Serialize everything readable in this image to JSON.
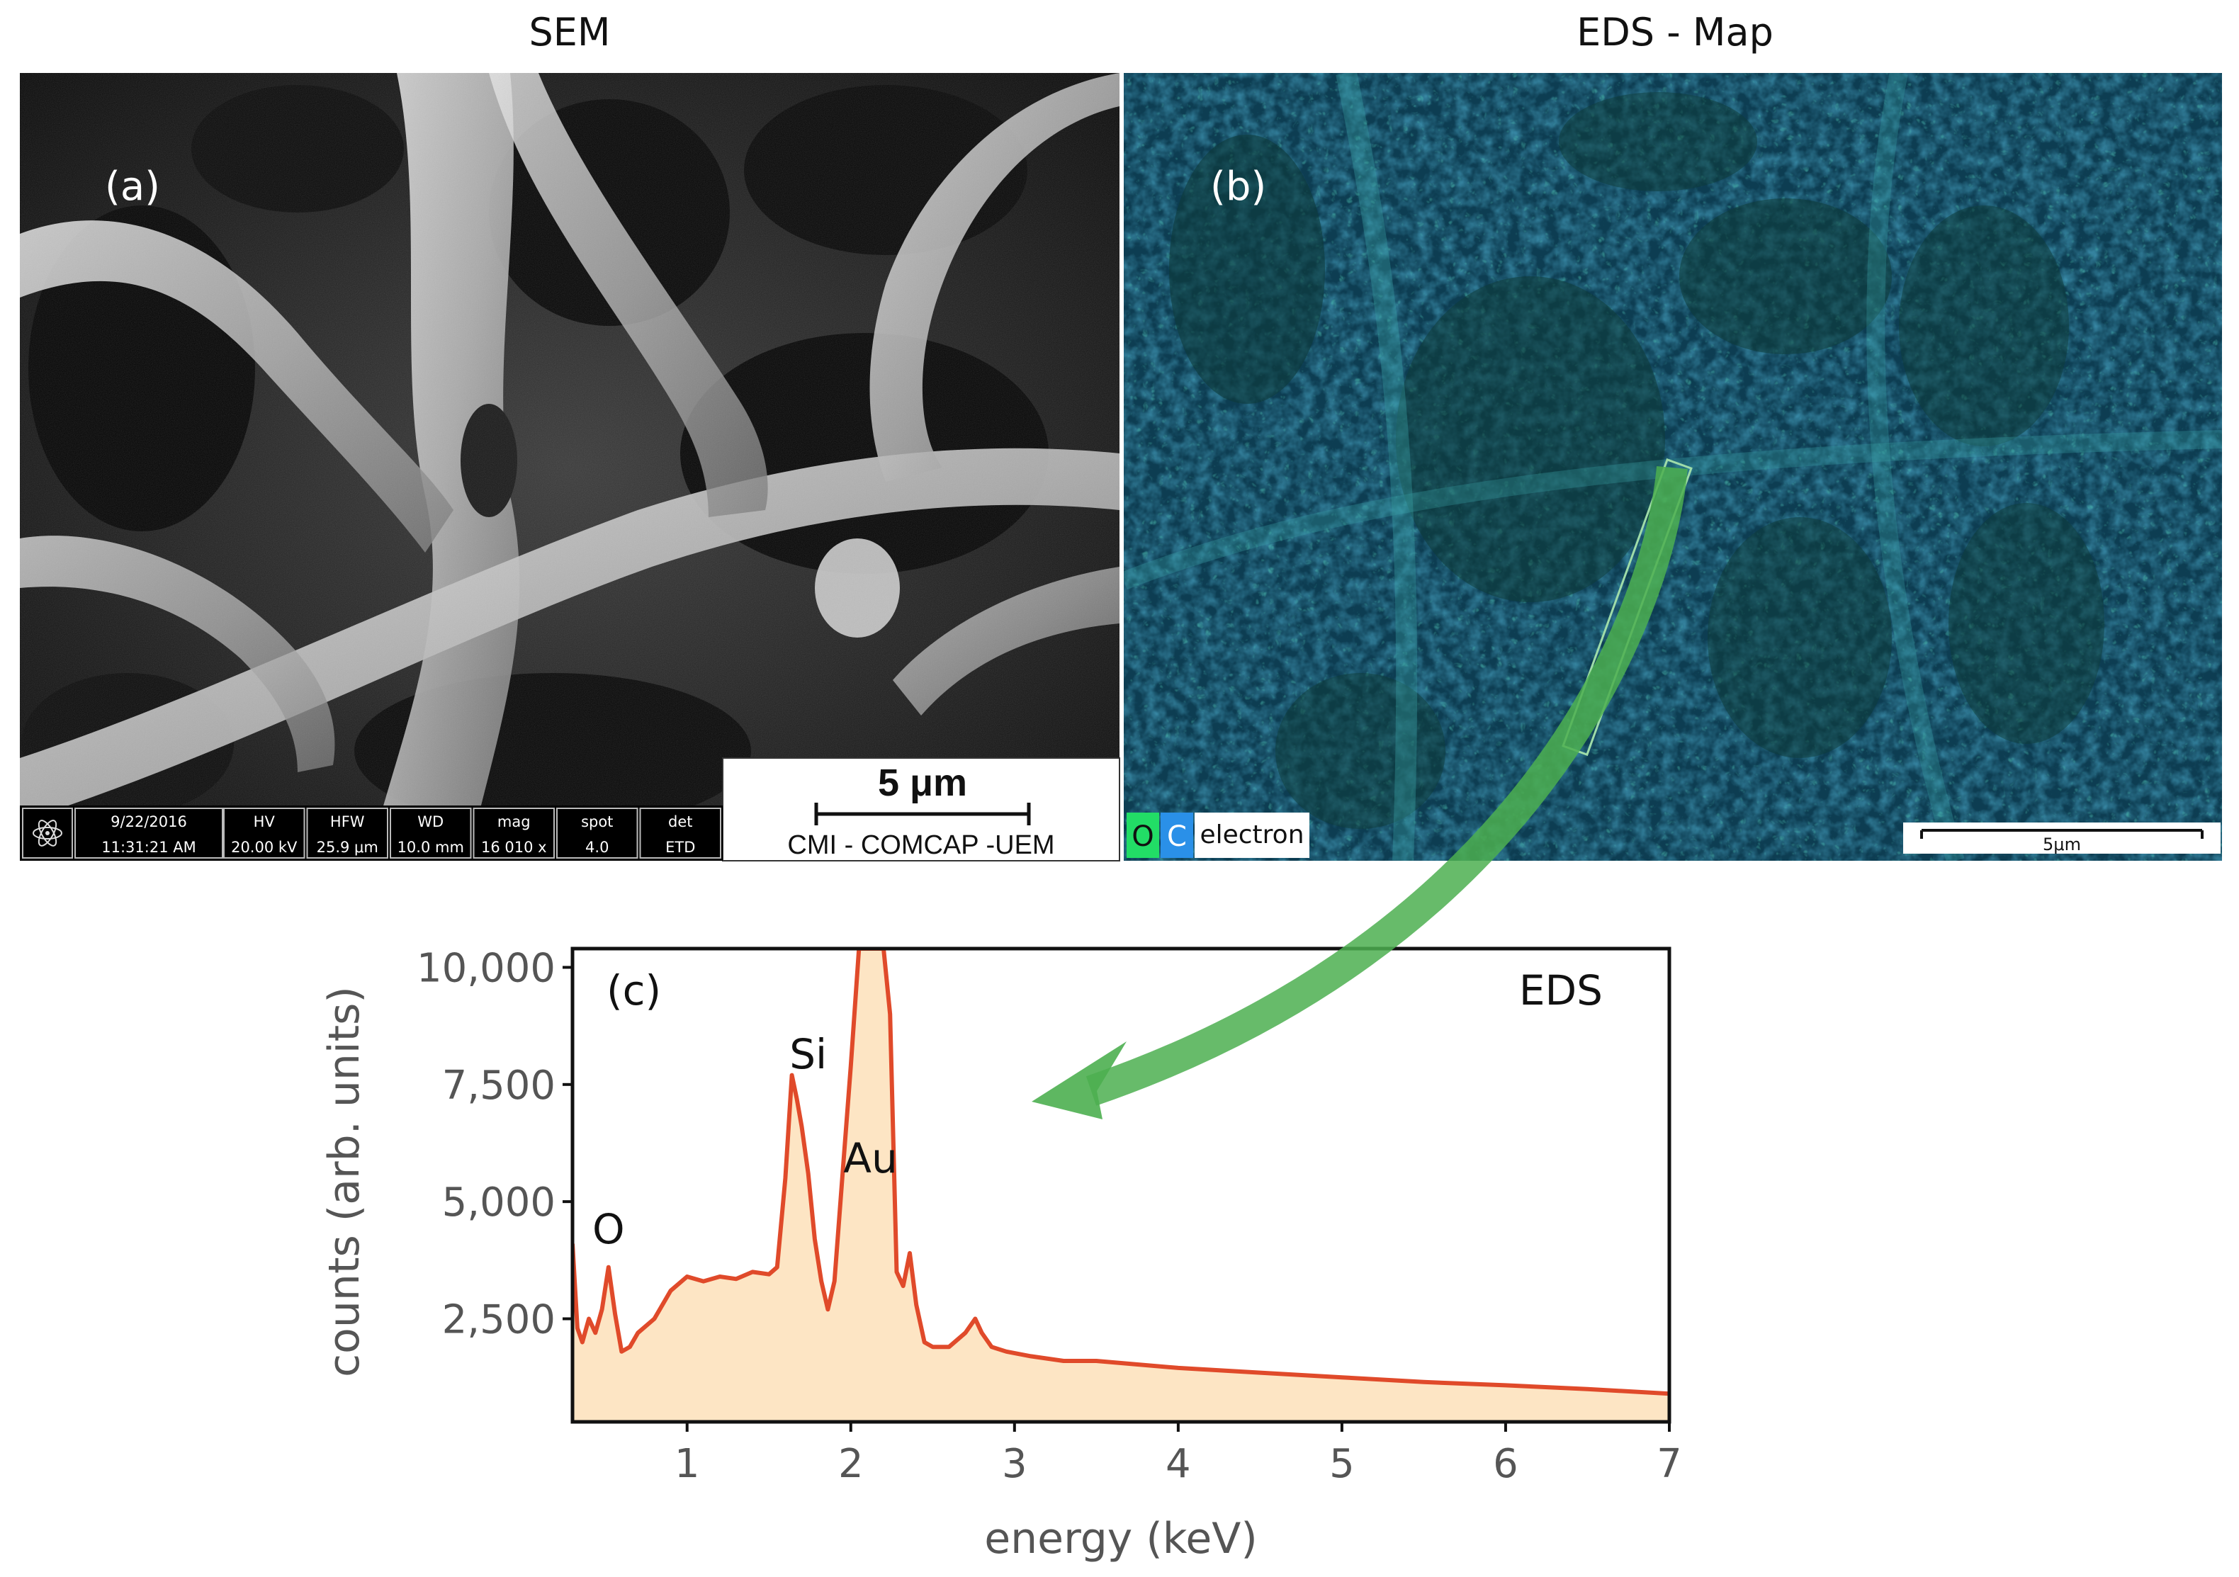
{
  "panels": {
    "sem": {
      "title": "SEM",
      "label": "(a)",
      "scalebar": "5 μm",
      "lab": "CMI - COMCAP -UEM",
      "info": {
        "date": "9/22/2016",
        "time": "11:31:21 AM",
        "columns": [
          {
            "head": "HV",
            "value": "20.00 kV"
          },
          {
            "head": "HFW",
            "value": "25.9 μm"
          },
          {
            "head": "WD",
            "value": "10.0 mm"
          },
          {
            "head": "mag",
            "value": "16 010 x"
          },
          {
            "head": "spot",
            "value": "4.0"
          },
          {
            "head": "det",
            "value": "ETD"
          }
        ]
      }
    },
    "eds_map": {
      "title": "EDS - Map",
      "label": "(b)",
      "legend": [
        "O",
        "C",
        "electron"
      ],
      "legend_colors": [
        "#22dd66",
        "#2a90e8",
        "#ffffff"
      ],
      "scalebar": "5μm"
    }
  },
  "chart_data": {
    "type": "area",
    "label": "(c)",
    "title": "EDS",
    "xlabel": "energy (keV)",
    "ylabel": "counts (arb. units)",
    "xlim": [
      0.3,
      7.0
    ],
    "ylim": [
      300,
      10400
    ],
    "xticks": [
      1,
      2,
      3,
      4,
      5,
      6,
      7
    ],
    "yticks": [
      2500,
      5000,
      7500,
      10000
    ],
    "ytick_labels": [
      "2,500",
      "5,000",
      "7,500",
      "10,000"
    ],
    "line_color": "#e04a2a",
    "fill_color": "#fde5c4",
    "annotations": [
      {
        "text": "O",
        "x": 0.52
      },
      {
        "text": "Si",
        "x": 1.74
      },
      {
        "text": "Au",
        "x": 2.12
      }
    ],
    "x": [
      0.3,
      0.33,
      0.36,
      0.4,
      0.44,
      0.48,
      0.52,
      0.56,
      0.6,
      0.65,
      0.7,
      0.8,
      0.9,
      1.0,
      1.1,
      1.2,
      1.3,
      1.4,
      1.5,
      1.55,
      1.6,
      1.64,
      1.67,
      1.7,
      1.74,
      1.78,
      1.82,
      1.86,
      1.9,
      1.95,
      2.0,
      2.05,
      2.1,
      2.14,
      2.17,
      2.2,
      2.24,
      2.28,
      2.32,
      2.36,
      2.4,
      2.45,
      2.5,
      2.6,
      2.7,
      2.76,
      2.8,
      2.86,
      2.95,
      3.1,
      3.3,
      3.5,
      4.0,
      4.5,
      5.0,
      5.5,
      6.0,
      6.5,
      7.0
    ],
    "y": [
      4100,
      2300,
      2000,
      2500,
      2200,
      2700,
      3600,
      2600,
      1800,
      1900,
      2200,
      2500,
      3100,
      3400,
      3300,
      3400,
      3350,
      3500,
      3450,
      3600,
      5500,
      7700,
      7200,
      6600,
      5600,
      4200,
      3300,
      2700,
      3300,
      5600,
      7900,
      10400,
      10400,
      10400,
      10400,
      10400,
      9000,
      3500,
      3200,
      3900,
      2800,
      2000,
      1900,
      1900,
      2200,
      2500,
      2200,
      1900,
      1800,
      1700,
      1600,
      1600,
      1450,
      1350,
      1250,
      1150,
      1080,
      1000,
      900
    ]
  }
}
